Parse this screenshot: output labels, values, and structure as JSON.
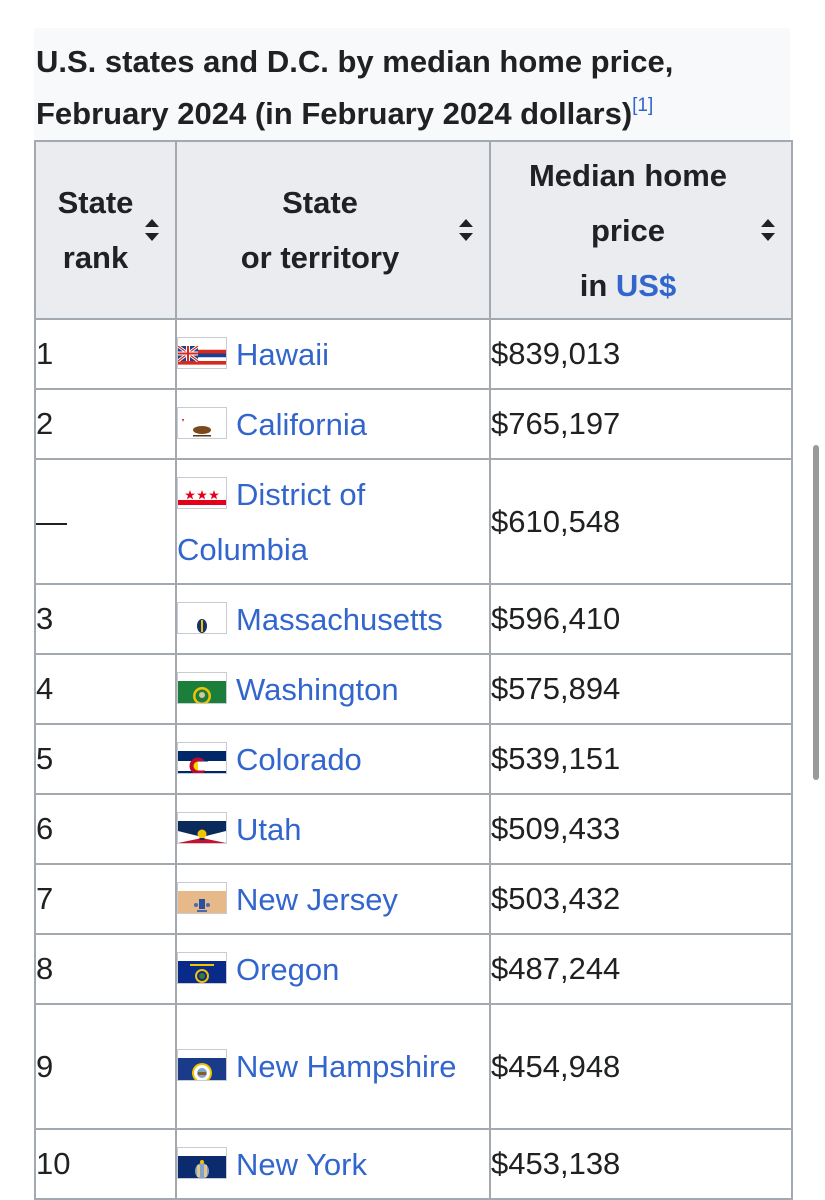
{
  "caption": {
    "title": "U.S. states and D.C. by median home price, February 2024 (in February 2024 dollars)",
    "ref": "[1]"
  },
  "headers": {
    "rank_line1": "State",
    "rank_line2": "rank",
    "state_line1": "State",
    "state_line2": "or territory",
    "price_line1": "Median home",
    "price_line2": "price",
    "price_line3_prefix": "in ",
    "price_line3_link": "US$"
  },
  "rows": [
    {
      "rank": "1",
      "state": "Hawaii",
      "price": "$839,013",
      "flag": "hawaii-flag-icon"
    },
    {
      "rank": "2",
      "state": "California",
      "price": "$765,197",
      "flag": "california-flag-icon"
    },
    {
      "rank": "—",
      "state": "District of Columbia",
      "price": "$610,548",
      "flag": "dc-flag-icon"
    },
    {
      "rank": "3",
      "state": "Massachusetts",
      "price": "$596,410",
      "flag": "massachusetts-flag-icon"
    },
    {
      "rank": "4",
      "state": "Washington",
      "price": "$575,894",
      "flag": "washington-flag-icon"
    },
    {
      "rank": "5",
      "state": "Colorado",
      "price": "$539,151",
      "flag": "colorado-flag-icon"
    },
    {
      "rank": "6",
      "state": "Utah",
      "price": "$509,433",
      "flag": "utah-flag-icon"
    },
    {
      "rank": "7",
      "state": "New Jersey",
      "price": "$503,432",
      "flag": "new-jersey-flag-icon"
    },
    {
      "rank": "8",
      "state": "Oregon",
      "price": "$487,244",
      "flag": "oregon-flag-icon"
    },
    {
      "rank": "9",
      "state": "New Hampshire",
      "price": "$454,948",
      "flag": "new-hampshire-flag-icon"
    },
    {
      "rank": "10",
      "state": "New York",
      "price": "$453,138",
      "flag": "new-york-flag-icon"
    }
  ],
  "colors": {
    "link": "#3366cc",
    "header_bg": "#eaecf0",
    "border": "#a2a9b1"
  }
}
